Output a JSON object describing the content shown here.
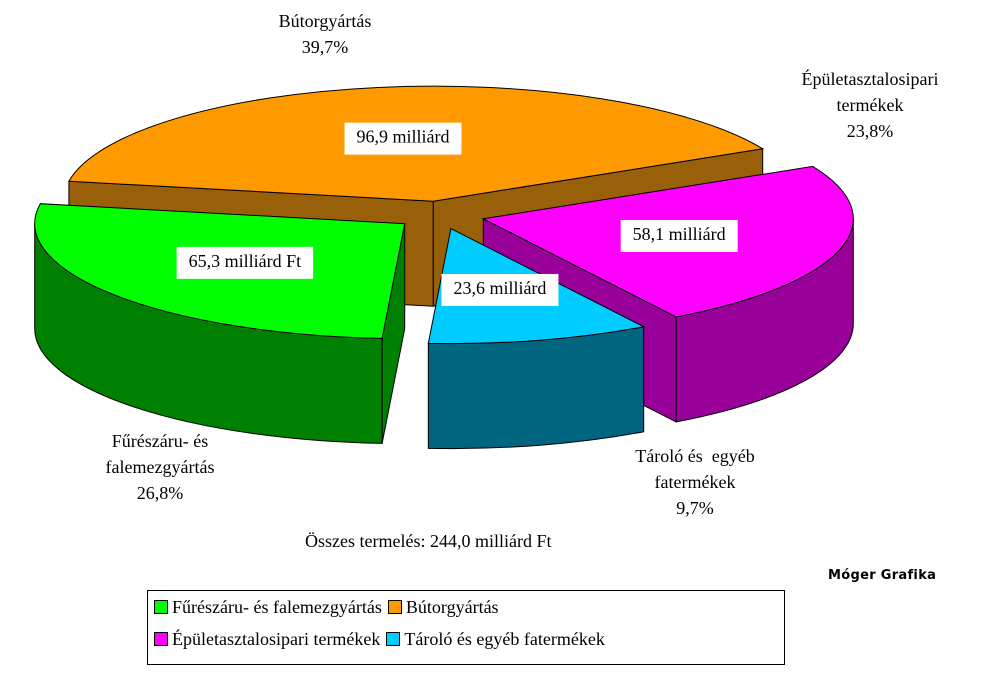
{
  "chart_data": {
    "type": "pie3d",
    "categories": [
      "Fűrészáru- és falemezgyártás",
      "Bútorgyártás",
      "Épületasztalosipari termékek",
      "Tároló és  egyéb fatermékek"
    ],
    "values": [
      26.8,
      39.7,
      23.8,
      9.7
    ],
    "value_labels": [
      "26,8%",
      "39,7%",
      "23,8%",
      "9,7%"
    ],
    "amount_labels": [
      "65,3 milliárd Ft",
      "96,9 milliárd",
      "58,1 milliárd",
      "23,6 milliárd"
    ],
    "colors": [
      "#00ff00",
      "#ff9900",
      "#ff00ff",
      "#00ccff"
    ],
    "side_colors": [
      "#008000",
      "#99600a",
      "#990099",
      "#006680"
    ],
    "note": "Összes termelés: 244,0 milliárd Ft",
    "watermark": "Móger Grafika",
    "legend": true
  }
}
